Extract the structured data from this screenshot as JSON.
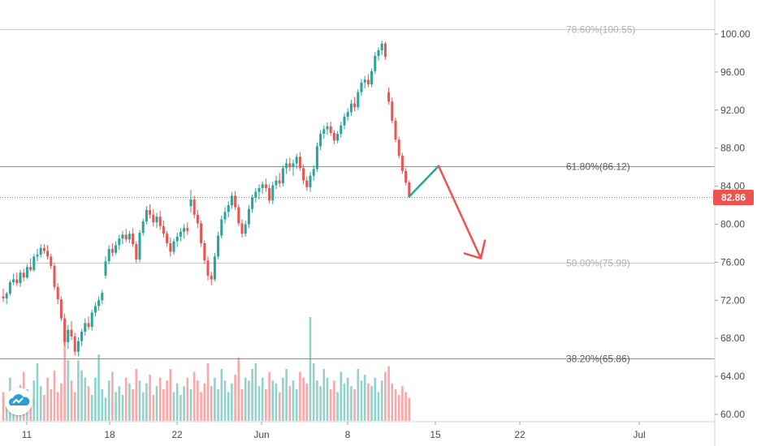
{
  "chart_data": {
    "type": "candlestick",
    "title": "",
    "xlabel": "",
    "ylabel": "",
    "ylim": [
      59,
      103
    ],
    "y_ticks": [
      "60.00",
      "64.00",
      "68.00",
      "72.00",
      "76.00",
      "80.00",
      "84.00",
      "88.00",
      "92.00",
      "96.00",
      "100.00"
    ],
    "x_ticks": [
      "11",
      "18",
      "22",
      "Jun",
      "8",
      "15",
      "22",
      "Jul"
    ],
    "last_price": {
      "label": "82.86",
      "value": 82.86,
      "color": "#ef5350"
    },
    "fib_levels": [
      {
        "label": "78.60%(100.55)",
        "value": 100.55,
        "faded": true
      },
      {
        "label": "61.80%(86.12)",
        "value": 86.12,
        "faded": false
      },
      {
        "label": "50.00%(75.99)",
        "value": 75.99,
        "faded": true
      },
      {
        "label": "38.20%(65.86)",
        "value": 65.86,
        "faded": false
      }
    ],
    "projection": {
      "up": {
        "from": 82.9,
        "to": 86.12,
        "color": "#26a69a"
      },
      "down": {
        "from": 86.12,
        "to": 75.9,
        "color": "#ef5350"
      }
    },
    "candles": [
      [
        72.4,
        73.2,
        71.8,
        72.2
      ],
      [
        72.2,
        72.9,
        71.6,
        72.7
      ],
      [
        72.7,
        74.1,
        72.5,
        73.9
      ],
      [
        73.9,
        74.8,
        73.6,
        74.2
      ],
      [
        74.2,
        74.9,
        73.5,
        73.8
      ],
      [
        73.8,
        75.2,
        73.4,
        74.9
      ],
      [
        74.9,
        75.3,
        74.0,
        74.4
      ],
      [
        74.4,
        75.8,
        74.2,
        75.5
      ],
      [
        75.5,
        76.4,
        75.0,
        75.2
      ],
      [
        75.2,
        76.9,
        75.0,
        76.6
      ],
      [
        76.6,
        77.4,
        76.1,
        76.8
      ],
      [
        76.8,
        77.9,
        76.5,
        77.5
      ],
      [
        77.5,
        77.9,
        76.9,
        77.2
      ],
      [
        77.2,
        77.8,
        76.3,
        76.6
      ],
      [
        76.6,
        76.9,
        75.3,
        75.6
      ],
      [
        75.6,
        75.9,
        73.1,
        73.4
      ],
      [
        73.4,
        73.8,
        71.6,
        72.1
      ],
      [
        72.1,
        72.4,
        69.8,
        70.1
      ],
      [
        70.1,
        70.6,
        67.2,
        67.6
      ],
      [
        67.6,
        69.4,
        66.9,
        68.9
      ],
      [
        68.9,
        69.8,
        67.8,
        68.2
      ],
      [
        68.2,
        68.6,
        66.2,
        66.6
      ],
      [
        66.6,
        68.1,
        66.1,
        67.7
      ],
      [
        67.7,
        69.0,
        67.2,
        68.7
      ],
      [
        68.7,
        70.1,
        68.3,
        69.6
      ],
      [
        69.6,
        70.3,
        68.9,
        69.2
      ],
      [
        69.2,
        71.0,
        68.8,
        70.7
      ],
      [
        70.7,
        71.8,
        70.3,
        71.4
      ],
      [
        71.4,
        72.4,
        70.9,
        72.0
      ],
      [
        72.0,
        73.1,
        71.6,
        72.8
      ],
      [
        74.6,
        76.6,
        74.3,
        76.1
      ],
      [
        76.1,
        77.8,
        75.8,
        77.4
      ],
      [
        77.4,
        78.0,
        76.6,
        77.0
      ],
      [
        77.0,
        78.2,
        76.8,
        77.8
      ],
      [
        77.8,
        78.9,
        77.3,
        78.5
      ],
      [
        78.5,
        79.3,
        77.9,
        78.9
      ],
      [
        78.9,
        79.5,
        78.1,
        78.4
      ],
      [
        78.4,
        79.3,
        78.0,
        79.0
      ],
      [
        79.0,
        79.6,
        77.6,
        77.9
      ],
      [
        77.9,
        78.2,
        75.9,
        76.3
      ],
      [
        76.3,
        79.4,
        76.0,
        79.1
      ],
      [
        79.1,
        80.6,
        78.8,
        80.3
      ],
      [
        80.3,
        81.9,
        80.0,
        81.5
      ],
      [
        81.5,
        82.1,
        80.6,
        81.0
      ],
      [
        81.0,
        81.6,
        79.8,
        80.2
      ],
      [
        80.2,
        81.2,
        79.6,
        80.8
      ],
      [
        80.8,
        81.4,
        79.4,
        79.8
      ],
      [
        79.8,
        80.4,
        78.6,
        79.0
      ],
      [
        79.0,
        79.3,
        77.6,
        78.0
      ],
      [
        78.0,
        78.6,
        76.6,
        77.1
      ],
      [
        77.1,
        78.5,
        76.8,
        78.2
      ],
      [
        78.2,
        79.1,
        77.6,
        78.7
      ],
      [
        78.7,
        79.6,
        78.2,
        79.2
      ],
      [
        79.2,
        80.0,
        78.5,
        79.6
      ],
      [
        79.6,
        80.2,
        78.9,
        79.3
      ],
      [
        81.9,
        83.6,
        81.2,
        82.6
      ],
      [
        82.6,
        83.0,
        80.6,
        81.0
      ],
      [
        81.0,
        81.5,
        79.6,
        80.1
      ],
      [
        80.1,
        80.4,
        77.6,
        78.0
      ],
      [
        78.0,
        78.3,
        75.8,
        76.2
      ],
      [
        76.2,
        76.6,
        74.1,
        74.6
      ],
      [
        74.6,
        75.0,
        73.6,
        74.2
      ],
      [
        74.2,
        77.0,
        74.0,
        76.6
      ],
      [
        76.6,
        79.2,
        76.3,
        78.8
      ],
      [
        78.8,
        80.9,
        78.5,
        80.5
      ],
      [
        80.5,
        81.8,
        80.1,
        81.3
      ],
      [
        81.3,
        82.4,
        80.7,
        82.0
      ],
      [
        82.0,
        83.4,
        81.6,
        83.0
      ],
      [
        83.0,
        83.5,
        81.5,
        81.8
      ],
      [
        81.8,
        82.1,
        79.8,
        80.1
      ],
      [
        80.1,
        80.5,
        78.6,
        79.0
      ],
      [
        79.0,
        80.4,
        78.7,
        80.0
      ],
      [
        80.0,
        82.0,
        79.6,
        81.6
      ],
      [
        81.6,
        83.1,
        81.2,
        82.8
      ],
      [
        82.8,
        83.8,
        82.3,
        83.4
      ],
      [
        83.4,
        84.2,
        82.6,
        83.8
      ],
      [
        83.8,
        84.5,
        83.2,
        84.2
      ],
      [
        84.2,
        84.8,
        83.4,
        83.8
      ],
      [
        83.8,
        84.2,
        82.2,
        82.5
      ],
      [
        82.5,
        84.5,
        82.1,
        84.1
      ],
      [
        84.1,
        85.1,
        83.7,
        84.6
      ],
      [
        84.6,
        85.4,
        83.9,
        84.3
      ],
      [
        84.3,
        86.2,
        84.0,
        85.9
      ],
      [
        85.9,
        86.9,
        85.3,
        86.4
      ],
      [
        86.4,
        87.0,
        85.6,
        86.0
      ],
      [
        86.0,
        86.8,
        85.1,
        86.4
      ],
      [
        86.4,
        87.4,
        85.8,
        87.1
      ],
      [
        87.1,
        87.6,
        85.6,
        85.9
      ],
      [
        85.9,
        86.3,
        84.2,
        84.6
      ],
      [
        84.6,
        85.0,
        83.5,
        83.9
      ],
      [
        83.9,
        85.5,
        83.4,
        85.1
      ],
      [
        85.1,
        86.2,
        84.6,
        85.8
      ],
      [
        85.8,
        88.6,
        85.5,
        88.2
      ],
      [
        88.2,
        89.9,
        87.8,
        89.5
      ],
      [
        89.5,
        90.4,
        89.0,
        90.0
      ],
      [
        90.0,
        90.7,
        89.4,
        90.3
      ],
      [
        90.3,
        90.8,
        89.3,
        89.6
      ],
      [
        89.6,
        89.9,
        88.4,
        88.8
      ],
      [
        88.8,
        89.8,
        88.5,
        89.5
      ],
      [
        89.5,
        90.8,
        89.1,
        90.4
      ],
      [
        90.4,
        91.7,
        90.0,
        91.3
      ],
      [
        91.3,
        92.2,
        90.9,
        91.8
      ],
      [
        91.8,
        93.1,
        91.4,
        92.7
      ],
      [
        92.7,
        93.4,
        91.9,
        92.3
      ],
      [
        92.3,
        94.2,
        92.0,
        93.9
      ],
      [
        93.9,
        95.3,
        93.5,
        94.9
      ],
      [
        94.9,
        95.6,
        94.3,
        95.2
      ],
      [
        95.2,
        95.8,
        94.4,
        94.7
      ],
      [
        94.7,
        96.4,
        94.4,
        96.1
      ],
      [
        96.1,
        98.1,
        95.8,
        97.7
      ],
      [
        97.7,
        98.6,
        97.2,
        98.3
      ],
      [
        98.3,
        99.3,
        97.8,
        99.0
      ],
      [
        99.0,
        99.2,
        97.3,
        97.6
      ],
      [
        93.9,
        94.4,
        92.6,
        92.9
      ],
      [
        92.9,
        93.3,
        90.6,
        90.9
      ],
      [
        90.9,
        91.2,
        88.6,
        88.9
      ],
      [
        88.9,
        89.2,
        86.9,
        87.2
      ],
      [
        87.2,
        87.5,
        85.3,
        85.6
      ],
      [
        85.6,
        85.9,
        84.1,
        84.4
      ],
      [
        84.4,
        84.6,
        82.8,
        82.86
      ]
    ],
    "volume_bars": [
      20,
      14,
      30,
      12,
      18,
      25,
      34,
      22,
      16,
      28,
      40,
      24,
      18,
      30,
      22,
      35,
      20,
      26,
      64,
      42,
      28,
      20,
      42,
      35,
      30,
      24,
      18,
      30,
      46,
      22,
      16,
      28,
      34,
      20,
      24,
      18,
      30,
      26,
      22,
      36,
      28,
      20,
      26,
      32,
      18,
      24,
      30,
      22,
      28,
      36,
      20,
      26,
      18,
      24,
      30,
      22,
      34,
      28,
      20,
      26,
      40,
      24,
      30,
      22,
      36,
      28,
      20,
      26,
      32,
      44,
      22,
      30,
      28,
      36,
      40,
      24,
      30,
      22,
      34,
      28,
      26,
      20,
      30,
      36,
      24,
      28,
      22,
      34,
      30,
      26,
      72,
      40,
      28,
      24,
      36,
      30,
      22,
      28,
      20,
      34,
      26,
      30,
      24,
      22,
      36,
      28,
      32,
      26,
      24,
      30,
      20,
      28,
      34,
      38,
      26,
      22,
      18,
      24,
      20,
      16
    ],
    "grid": false,
    "legend": "none"
  }
}
